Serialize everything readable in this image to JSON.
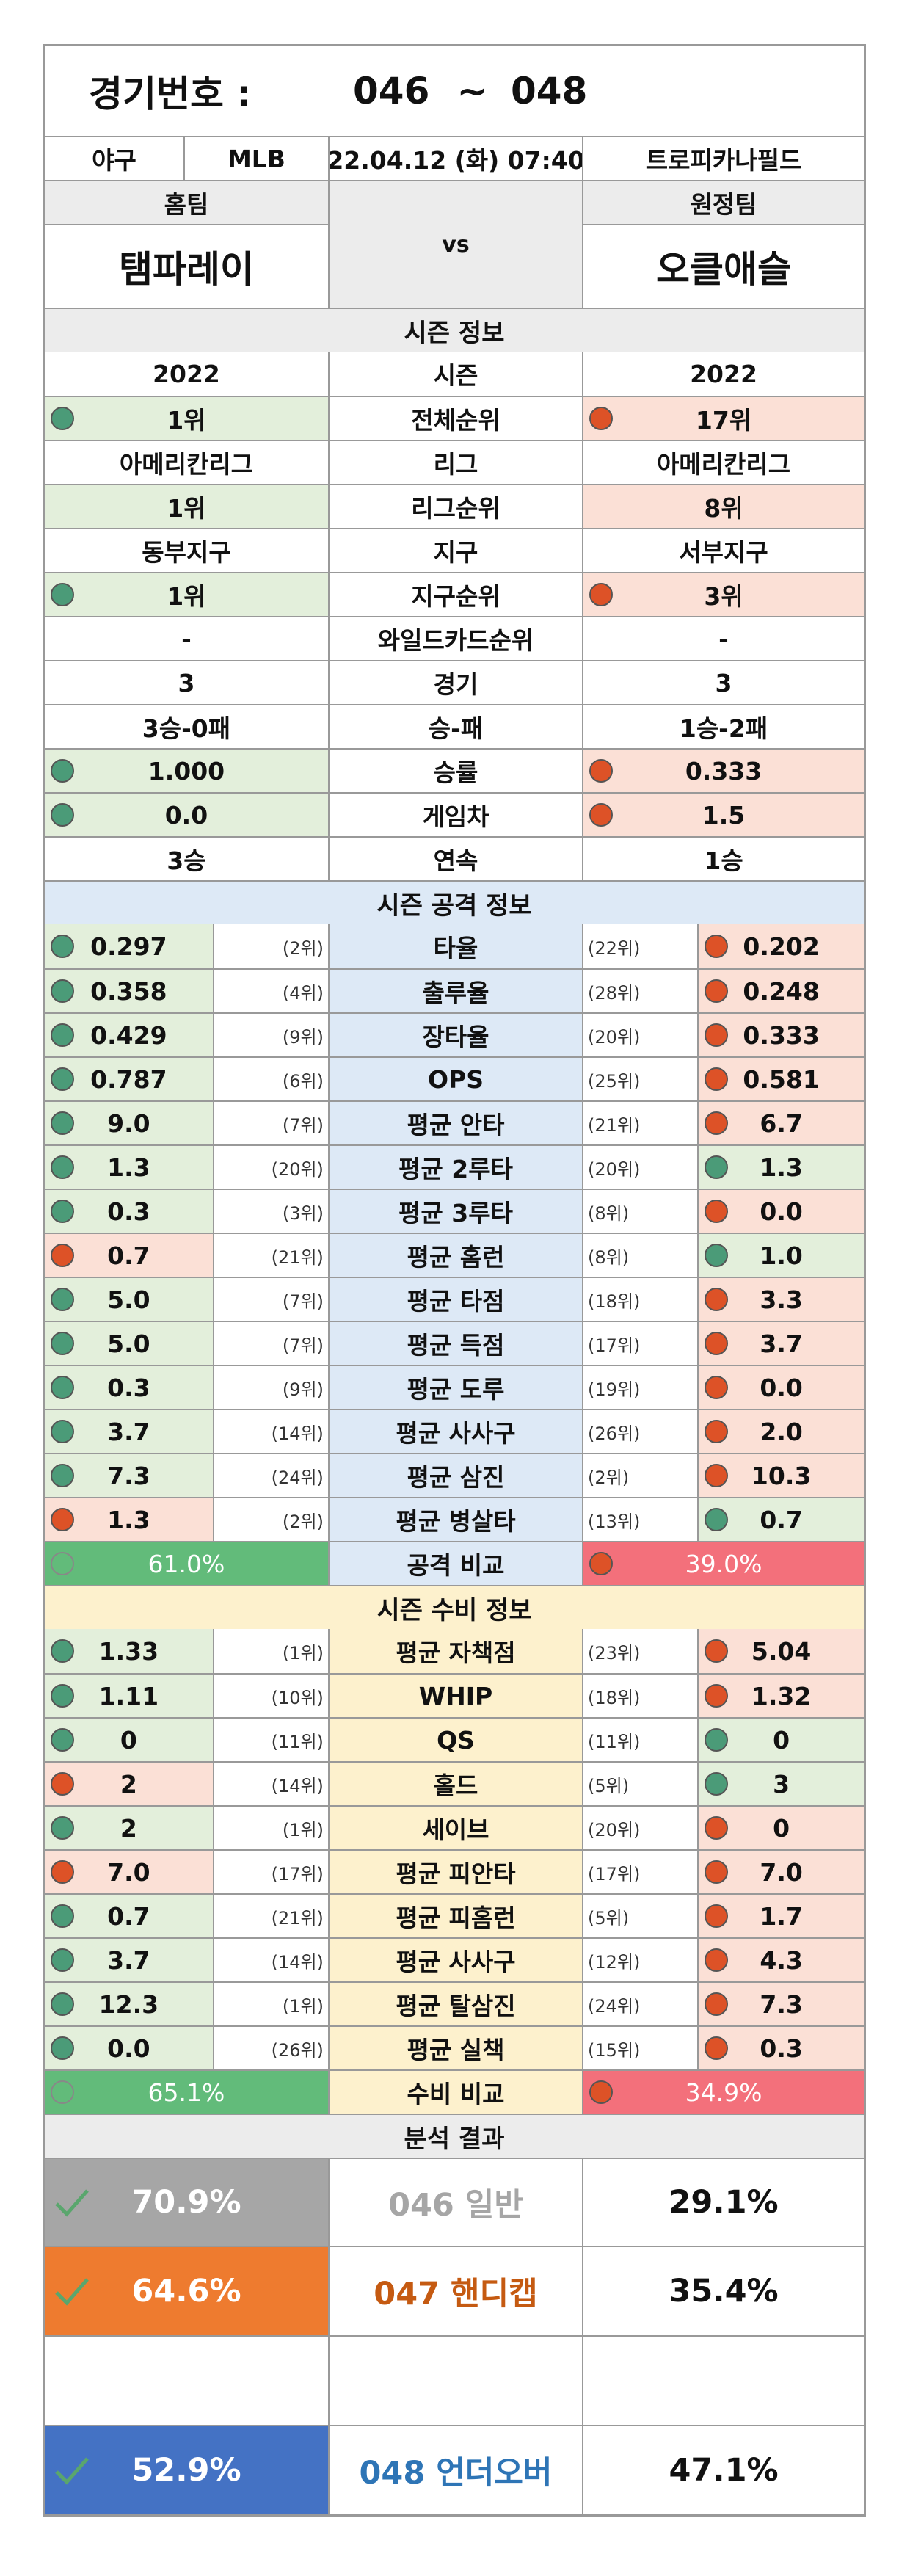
{
  "header": {
    "title_label": "경기번호 :",
    "start_no": "046",
    "tilde": "~",
    "end_no": "048"
  },
  "game": {
    "sport": "야구",
    "league": "MLB",
    "datetime": "22.04.12 (화) 07:40",
    "venue": "트로피카나필드"
  },
  "teams": {
    "home_label": "홈팀",
    "away_label": "원정팀",
    "vs": "vs",
    "home": "탬파레이",
    "away": "오클애슬"
  },
  "season": {
    "section_title": "시즌 정보",
    "rows": [
      {
        "label": "시즌",
        "home": "2022",
        "away": "2022",
        "home_dot": "",
        "away_dot": "",
        "home_bg": "",
        "away_bg": ""
      },
      {
        "label": "전체순위",
        "home": "1위",
        "away": "17위",
        "home_dot": "g",
        "away_dot": "o",
        "home_bg": "green",
        "away_bg": "red"
      },
      {
        "label": "리그",
        "home": "아메리칸리그",
        "away": "아메리칸리그",
        "home_dot": "",
        "away_dot": "",
        "home_bg": "",
        "away_bg": ""
      },
      {
        "label": "리그순위",
        "home": "1위",
        "away": "8위",
        "home_dot": "",
        "away_dot": "",
        "home_bg": "green",
        "away_bg": "red"
      },
      {
        "label": "지구",
        "home": "동부지구",
        "away": "서부지구",
        "home_dot": "",
        "away_dot": "",
        "home_bg": "",
        "away_bg": ""
      },
      {
        "label": "지구순위",
        "home": "1위",
        "away": "3위",
        "home_dot": "g",
        "away_dot": "o",
        "home_bg": "green",
        "away_bg": "red"
      },
      {
        "label": "와일드카드순위",
        "home": "-",
        "away": "-",
        "home_dot": "",
        "away_dot": "",
        "home_bg": "",
        "away_bg": ""
      },
      {
        "label": "경기",
        "home": "3",
        "away": "3",
        "home_dot": "",
        "away_dot": "",
        "home_bg": "",
        "away_bg": ""
      },
      {
        "label": "승-패",
        "home": "3승-0패",
        "away": "1승-2패",
        "home_dot": "",
        "away_dot": "",
        "home_bg": "",
        "away_bg": ""
      },
      {
        "label": "승률",
        "home": "1.000",
        "away": "0.333",
        "home_dot": "g",
        "away_dot": "o",
        "home_bg": "green",
        "away_bg": "red"
      },
      {
        "label": "게임차",
        "home": "0.0",
        "away": "1.5",
        "home_dot": "g",
        "away_dot": "o",
        "home_bg": "green",
        "away_bg": "red"
      },
      {
        "label": "연속",
        "home": "3승",
        "away": "1승",
        "home_dot": "",
        "away_dot": "",
        "home_bg": "",
        "away_bg": ""
      }
    ]
  },
  "offense": {
    "section_title": "시즌 공격 정보",
    "rows": [
      {
        "label": "타율",
        "home": "0.297",
        "home_rank": "(2위)",
        "away_rank": "(22위)",
        "away": "0.202",
        "home_dot": "g",
        "away_dot": "o"
      },
      {
        "label": "출루율",
        "home": "0.358",
        "home_rank": "(4위)",
        "away_rank": "(28위)",
        "away": "0.248",
        "home_dot": "g",
        "away_dot": "o"
      },
      {
        "label": "장타율",
        "home": "0.429",
        "home_rank": "(9위)",
        "away_rank": "(20위)",
        "away": "0.333",
        "home_dot": "g",
        "away_dot": "o"
      },
      {
        "label": "OPS",
        "home": "0.787",
        "home_rank": "(6위)",
        "away_rank": "(25위)",
        "away": "0.581",
        "home_dot": "g",
        "away_dot": "o"
      },
      {
        "label": "평균 안타",
        "home": "9.0",
        "home_rank": "(7위)",
        "away_rank": "(21위)",
        "away": "6.7",
        "home_dot": "g",
        "away_dot": "o"
      },
      {
        "label": "평균 2루타",
        "home": "1.3",
        "home_rank": "(20위)",
        "away_rank": "(20위)",
        "away": "1.3",
        "home_dot": "g",
        "away_dot": "g"
      },
      {
        "label": "평균 3루타",
        "home": "0.3",
        "home_rank": "(3위)",
        "away_rank": "(8위)",
        "away": "0.0",
        "home_dot": "g",
        "away_dot": "o"
      },
      {
        "label": "평균 홈런",
        "home": "0.7",
        "home_rank": "(21위)",
        "away_rank": "(8위)",
        "away": "1.0",
        "home_dot": "o",
        "away_dot": "g"
      },
      {
        "label": "평균 타점",
        "home": "5.0",
        "home_rank": "(7위)",
        "away_rank": "(18위)",
        "away": "3.3",
        "home_dot": "g",
        "away_dot": "o"
      },
      {
        "label": "평균 득점",
        "home": "5.0",
        "home_rank": "(7위)",
        "away_rank": "(17위)",
        "away": "3.7",
        "home_dot": "g",
        "away_dot": "o"
      },
      {
        "label": "평균 도루",
        "home": "0.3",
        "home_rank": "(9위)",
        "away_rank": "(19위)",
        "away": "0.0",
        "home_dot": "g",
        "away_dot": "o"
      },
      {
        "label": "평균 사사구",
        "home": "3.7",
        "home_rank": "(14위)",
        "away_rank": "(26위)",
        "away": "2.0",
        "home_dot": "g",
        "away_dot": "o"
      },
      {
        "label": "평균 삼진",
        "home": "7.3",
        "home_rank": "(24위)",
        "away_rank": "(2위)",
        "away": "10.3",
        "home_dot": "g",
        "away_dot": "o"
      },
      {
        "label": "평균 병살타",
        "home": "1.3",
        "home_rank": "(2위)",
        "away_rank": "(13위)",
        "away": "0.7",
        "home_dot": "o",
        "away_dot": "g"
      }
    ],
    "compare_label": "공격 비교",
    "home_pct": "61.0%",
    "away_pct": "39.0%"
  },
  "defense": {
    "section_title": "시즌 수비 정보",
    "rows": [
      {
        "label": "평균 자책점",
        "home": "1.33",
        "home_rank": "(1위)",
        "away_rank": "(23위)",
        "away": "5.04",
        "home_dot": "g",
        "away_dot": "o"
      },
      {
        "label": "WHIP",
        "home": "1.11",
        "home_rank": "(10위)",
        "away_rank": "(18위)",
        "away": "1.32",
        "home_dot": "g",
        "away_dot": "o"
      },
      {
        "label": "QS",
        "home": "0",
        "home_rank": "(11위)",
        "away_rank": "(11위)",
        "away": "0",
        "home_dot": "g",
        "away_dot": "g"
      },
      {
        "label": "홀드",
        "home": "2",
        "home_rank": "(14위)",
        "away_rank": "(5위)",
        "away": "3",
        "home_dot": "o",
        "away_dot": "g"
      },
      {
        "label": "세이브",
        "home": "2",
        "home_rank": "(1위)",
        "away_rank": "(20위)",
        "away": "0",
        "home_dot": "g",
        "away_dot": "o"
      },
      {
        "label": "평균 피안타",
        "home": "7.0",
        "home_rank": "(17위)",
        "away_rank": "(17위)",
        "away": "7.0",
        "home_dot": "o",
        "away_dot": "o"
      },
      {
        "label": "평균 피홈런",
        "home": "0.7",
        "home_rank": "(21위)",
        "away_rank": "(5위)",
        "away": "1.7",
        "home_dot": "g",
        "away_dot": "o"
      },
      {
        "label": "평균 사사구",
        "home": "3.7",
        "home_rank": "(14위)",
        "away_rank": "(12위)",
        "away": "4.3",
        "home_dot": "g",
        "away_dot": "o"
      },
      {
        "label": "평균 탈삼진",
        "home": "12.3",
        "home_rank": "(1위)",
        "away_rank": "(24위)",
        "away": "7.3",
        "home_dot": "g",
        "away_dot": "o"
      },
      {
        "label": "평균 실책",
        "home": "0.0",
        "home_rank": "(26위)",
        "away_rank": "(15위)",
        "away": "0.3",
        "home_dot": "g",
        "away_dot": "o"
      }
    ],
    "compare_label": "수비 비교",
    "home_pct": "65.1%",
    "away_pct": "34.9%"
  },
  "analysis": {
    "section_title": "분석 결과",
    "rows": [
      {
        "pct": "70.9%",
        "label": "046 일반",
        "other": "29.1%",
        "style": "gray"
      },
      {
        "pct": "64.6%",
        "label": "047 핸디캡",
        "other": "35.4%",
        "style": "orange"
      },
      {
        "pct": "52.9%",
        "label": "048 언더오버",
        "other": "47.1%",
        "style": "blue"
      }
    ]
  },
  "colors": {
    "home_dot": "#4b9b78",
    "away_dot": "#dd5227",
    "compare_home": "#62bb7a",
    "compare_away": "#f3707b",
    "check_mark": "#5aa66d"
  }
}
